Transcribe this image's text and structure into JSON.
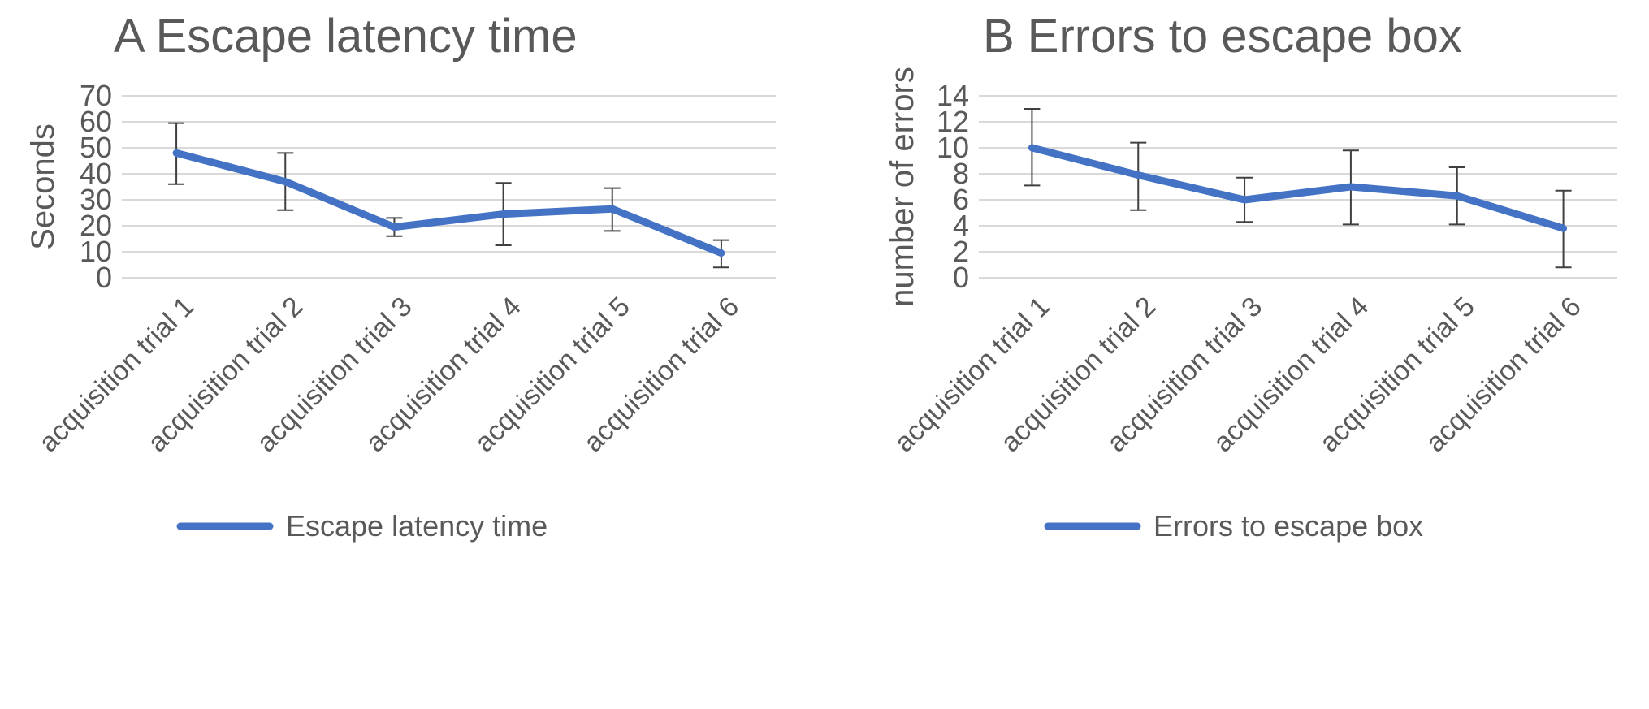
{
  "chart_data": [
    {
      "type": "line",
      "title": "A  Escape latency time",
      "ylabel": "Seconds",
      "xlabel": "",
      "categories": [
        "acquisition trial 1",
        "acquisition trial 2",
        "acquisition trial 3",
        "acquisition trial 4",
        "acquisition trial 5",
        "acquisition trial 6"
      ],
      "ylim": [
        0,
        70
      ],
      "yticks": [
        0,
        10,
        20,
        30,
        40,
        50,
        60,
        70
      ],
      "grid": true,
      "legend_position": "bottom",
      "series": [
        {
          "name": "Escape latency time",
          "color": "#4472c4",
          "values": [
            48,
            37,
            19.5,
            24.5,
            26.5,
            9.5
          ],
          "error_upper": [
            59.5,
            48,
            23,
            36.5,
            34.5,
            14.5
          ],
          "error_lower": [
            36,
            26,
            16,
            12.5,
            18,
            4
          ]
        }
      ]
    },
    {
      "type": "line",
      "title": "B  Errors to escape box",
      "ylabel": "number of errors",
      "xlabel": "",
      "categories": [
        "acquisition trial 1",
        "acquisition trial 2",
        "acquisition trial 3",
        "acquisition trial 4",
        "acquisition trial 5",
        "acquisition trial 6"
      ],
      "ylim": [
        0,
        14
      ],
      "yticks": [
        0,
        2,
        4,
        6,
        8,
        10,
        12,
        14
      ],
      "grid": true,
      "legend_position": "bottom",
      "series": [
        {
          "name": "Errors to escape box",
          "color": "#4472c4",
          "values": [
            10,
            7.9,
            6,
            7,
            6.3,
            3.8
          ],
          "error_upper": [
            13,
            10.4,
            7.7,
            9.8,
            8.5,
            6.7
          ],
          "error_lower": [
            7.1,
            5.2,
            4.3,
            4.1,
            4.1,
            0.8
          ]
        }
      ]
    }
  ]
}
